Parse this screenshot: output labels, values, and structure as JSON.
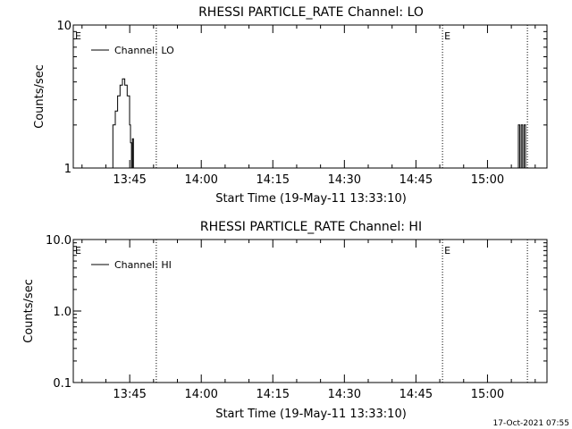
{
  "footer": {
    "timestamp": "17-Oct-2021 07:55"
  },
  "chart_data": [
    {
      "type": "line",
      "title": "RHESSI PARTICLE_RATE Channel: LO",
      "xlabel": "Start Time (19-May-11 13:33:10)",
      "ylabel": "Counts/sec",
      "yscale": "log",
      "ylim": [
        1,
        10
      ],
      "y_ticks": [
        1,
        10
      ],
      "y_tick_labels": [
        "1",
        "10"
      ],
      "x_unit": "minutes after 13:33:10",
      "xlim": [
        0,
        99.3
      ],
      "x_ticks": [
        11.83,
        26.83,
        41.83,
        56.83,
        71.83,
        86.83
      ],
      "x_tick_labels": [
        "13:45",
        "14:00",
        "14:15",
        "14:30",
        "14:45",
        "15:00"
      ],
      "legend": {
        "placement": "top-left",
        "entries": [
          "Channel: LO"
        ]
      },
      "event_markers": [
        {
          "x": 17.4,
          "label": "",
          "style": "dotted"
        },
        {
          "x": 77.4,
          "label": "",
          "style": "dotted"
        },
        {
          "x": 95.2,
          "label": "",
          "style": "dotted"
        }
      ],
      "edge_labels": [
        {
          "x": 0,
          "text": "E"
        },
        {
          "x": 77.4,
          "text": "E"
        }
      ],
      "series": [
        {
          "name": "Channel: LO",
          "points": [
            [
              8.3,
              1
            ],
            [
              8.3,
              2
            ],
            [
              8.8,
              2
            ],
            [
              8.8,
              2.5
            ],
            [
              9.3,
              2.5
            ],
            [
              9.3,
              3.2
            ],
            [
              9.8,
              3.2
            ],
            [
              9.8,
              3.8
            ],
            [
              10.3,
              3.8
            ],
            [
              10.3,
              4.2
            ],
            [
              10.8,
              4.2
            ],
            [
              10.8,
              3.8
            ],
            [
              11.3,
              3.8
            ],
            [
              11.3,
              3.2
            ],
            [
              11.8,
              3.2
            ],
            [
              11.8,
              2
            ],
            [
              12.0,
              2
            ],
            [
              12.0,
              1.5
            ],
            [
              12.2,
              1.5
            ],
            [
              12.2,
              1
            ],
            [
              12.4,
              1
            ],
            [
              12.4,
              1.6
            ],
            [
              12.6,
              1.6
            ],
            [
              12.6,
              1
            ]
          ]
        },
        {
          "name": "Channel: LO",
          "points": [
            [
              93.3,
              1
            ],
            [
              93.3,
              2
            ],
            [
              93.6,
              2
            ],
            [
              93.6,
              1
            ],
            [
              93.9,
              1
            ],
            [
              93.9,
              2
            ],
            [
              94.2,
              2
            ],
            [
              94.2,
              1
            ],
            [
              94.5,
              1
            ],
            [
              94.5,
              2
            ],
            [
              94.8,
              2
            ],
            [
              94.8,
              1
            ]
          ]
        }
      ]
    },
    {
      "type": "line",
      "title": "RHESSI PARTICLE_RATE Channel: HI",
      "xlabel": "Start Time (19-May-11 13:33:10)",
      "ylabel": "Counts/sec",
      "yscale": "log",
      "ylim": [
        0.1,
        10
      ],
      "y_ticks": [
        0.1,
        1,
        10
      ],
      "y_tick_labels": [
        "0.1",
        "1.0",
        "10.0"
      ],
      "x_unit": "minutes after 13:33:10",
      "xlim": [
        0,
        99.3
      ],
      "x_ticks": [
        11.83,
        26.83,
        41.83,
        56.83,
        71.83,
        86.83
      ],
      "x_tick_labels": [
        "13:45",
        "14:00",
        "14:15",
        "14:30",
        "14:45",
        "15:00"
      ],
      "legend": {
        "placement": "top-left",
        "entries": [
          "Channel: HI"
        ]
      },
      "event_markers": [
        {
          "x": 17.4,
          "label": "",
          "style": "dotted"
        },
        {
          "x": 77.4,
          "label": "",
          "style": "dotted"
        },
        {
          "x": 95.2,
          "label": "",
          "style": "dotted"
        }
      ],
      "edge_labels": [
        {
          "x": 0,
          "text": "E"
        },
        {
          "x": 77.4,
          "text": "E"
        }
      ],
      "series": [
        {
          "name": "Channel: HI",
          "points": []
        }
      ]
    }
  ]
}
